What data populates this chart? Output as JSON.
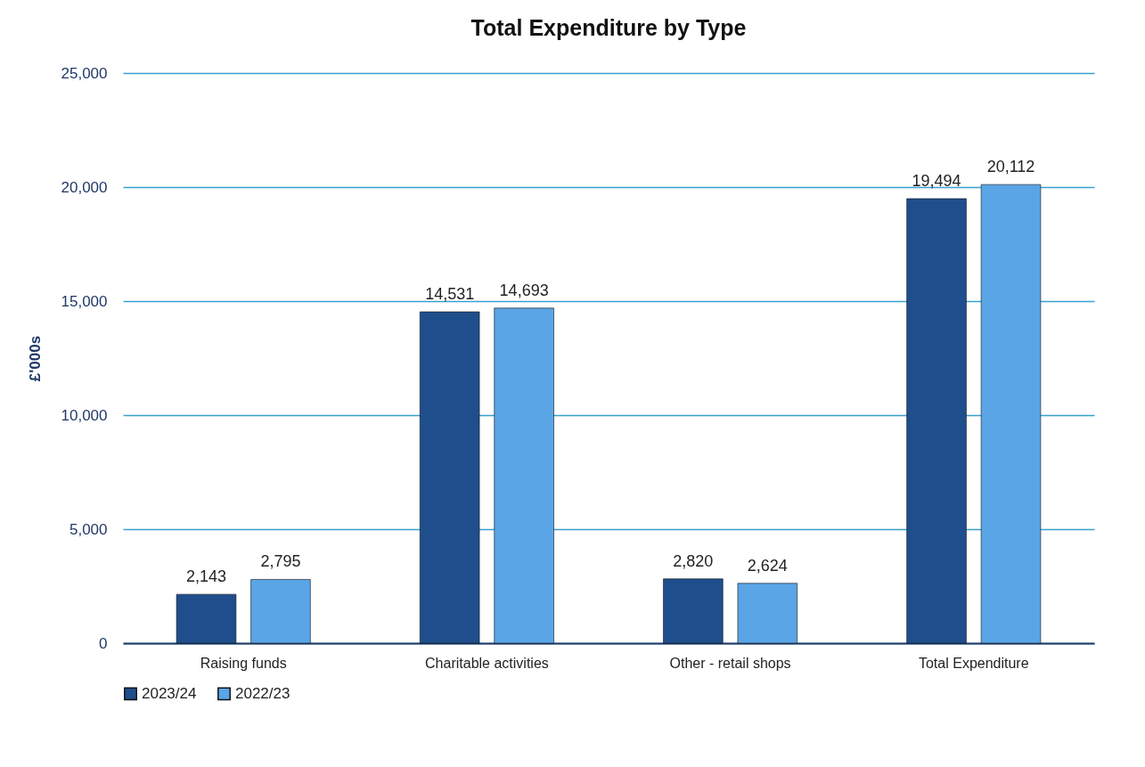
{
  "chart_data": {
    "type": "bar",
    "title": "Total Expenditure by Type",
    "ylabel": "£'000s",
    "categories": [
      "Raising funds",
      "Charitable activities",
      "Other - retail shops",
      "Total Expenditure"
    ],
    "series": [
      {
        "name": "2023/24",
        "color": "#1f4e8c",
        "values": [
          2143,
          14531,
          2820,
          19494
        ],
        "value_labels": [
          "2,143",
          "14,531",
          "2,820",
          "19,494"
        ]
      },
      {
        "name": "2022/23",
        "color": "#5aa5e6",
        "values": [
          2795,
          14693,
          2624,
          20112
        ],
        "value_labels": [
          "2,795",
          "14,693",
          "2,624",
          "20,112"
        ]
      }
    ],
    "ylim": [
      0,
      25000
    ],
    "yticks": [
      0,
      {
        "value": 5000,
        "label": "5,000"
      },
      {
        "value": 10000,
        "label": "10,000"
      },
      {
        "value": 15000,
        "label": "15,000"
      },
      {
        "value": 20000,
        "label": "20,000"
      },
      {
        "value": 25000,
        "label": "25,000"
      }
    ],
    "grid": "y",
    "legend": "bottom"
  }
}
